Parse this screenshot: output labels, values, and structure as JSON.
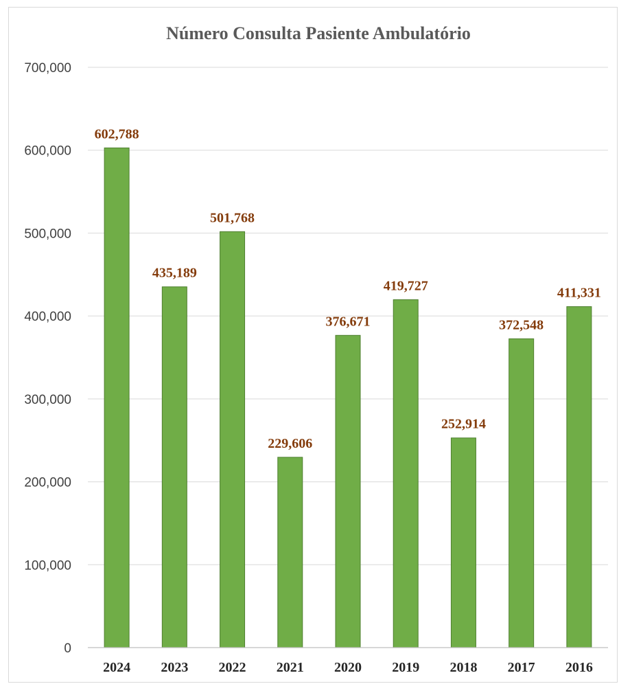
{
  "chart_data": {
    "type": "bar",
    "title": "Número Consulta Pasiente Ambulatório",
    "categories": [
      "2024",
      "2023",
      "2022",
      "2021",
      "2020",
      "2019",
      "2018",
      "2017",
      "2016"
    ],
    "values": [
      602788,
      435189,
      501768,
      229606,
      376671,
      419727,
      252914,
      372548,
      411331
    ],
    "data_labels": [
      "602,788",
      "435,189",
      "501,768",
      "229,606",
      "376,671",
      "419,727",
      "252,914",
      "372,548",
      "411,331"
    ],
    "ylim": [
      0,
      700000
    ],
    "yticks": [
      0,
      100000,
      200000,
      300000,
      400000,
      500000,
      600000,
      700000
    ],
    "ytick_labels": [
      "0",
      "100,000",
      "200,000",
      "300,000",
      "400,000",
      "500,000",
      "600,000",
      "700,000"
    ],
    "xlabel": "",
    "ylabel": "",
    "grid": true,
    "legend": "none",
    "colors": {
      "bar_fill": "#70ad47",
      "bar_stroke": "#4e7f2f",
      "data_label": "#843c0c",
      "grid": "#d9d9d9"
    }
  }
}
